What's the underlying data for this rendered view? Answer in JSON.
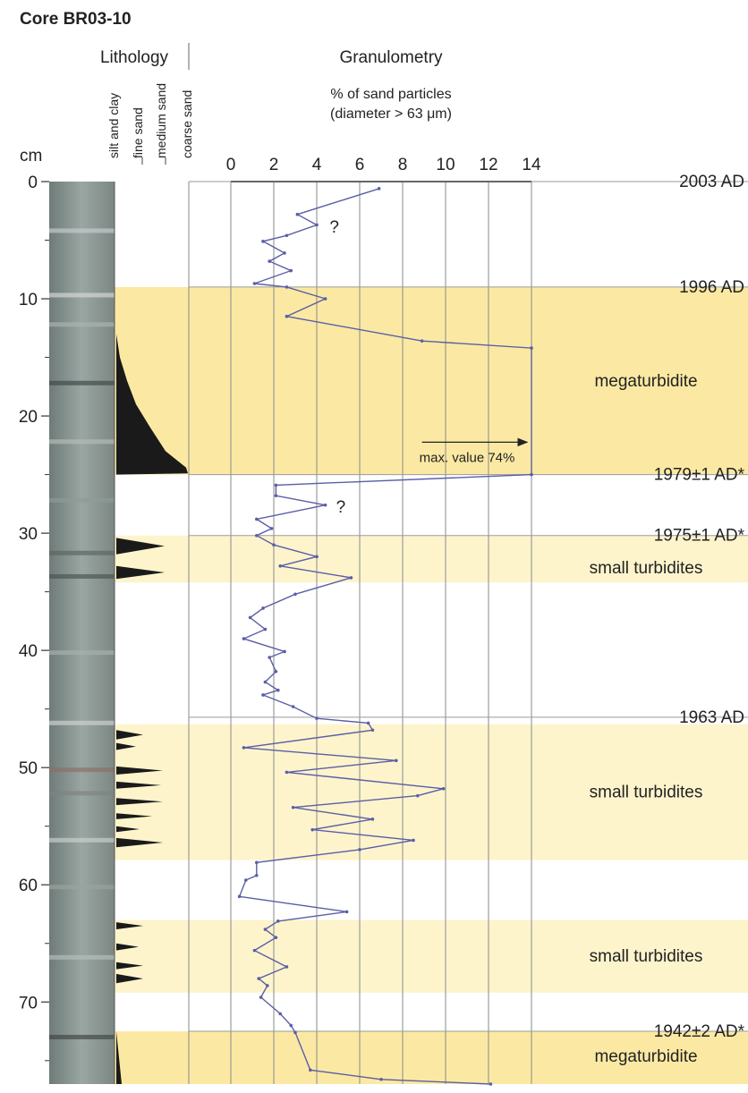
{
  "chart_data": {
    "type": "line",
    "title": "Core BR03-10",
    "lithology_title": "Lithology",
    "granulometry_title": "Granulometry",
    "xlabel_line1": "% of sand particles",
    "xlabel_line2": "(diameter > 63 μm)",
    "ylabel": "cm",
    "x_ticks": [
      "0",
      "2",
      "4",
      "6",
      "8",
      "10",
      "12",
      "14"
    ],
    "y_ticks": [
      "0",
      "10",
      "20",
      "30",
      "40",
      "50",
      "60",
      "70"
    ],
    "xlim": [
      0,
      14
    ],
    "ylim": [
      0,
      77
    ],
    "y_inverted": true,
    "grain_size_classes": [
      "silt and clay",
      "fine sand",
      "medium sand",
      "coarse sand"
    ],
    "series": [
      {
        "color": "#5b5ea6",
        "points": [
          [
            6.9,
            0.6
          ],
          [
            3.1,
            2.8
          ],
          [
            4.0,
            3.7
          ],
          [
            2.6,
            4.6
          ],
          [
            1.5,
            5.1
          ],
          [
            2.5,
            6.1
          ],
          [
            1.8,
            6.8
          ],
          [
            2.8,
            7.6
          ],
          [
            1.1,
            8.7
          ],
          [
            2.6,
            9.0
          ],
          [
            4.4,
            10.0
          ],
          [
            2.6,
            11.5
          ],
          [
            8.9,
            13.6
          ],
          [
            14,
            14.2
          ],
          [
            14,
            25.0
          ],
          [
            2.1,
            25.9
          ],
          [
            2.1,
            26.8
          ],
          [
            4.4,
            27.6
          ],
          [
            1.2,
            28.8
          ],
          [
            1.9,
            29.6
          ],
          [
            1.2,
            30.2
          ],
          [
            2.0,
            31.0
          ],
          [
            4.0,
            32.0
          ],
          [
            2.3,
            32.8
          ],
          [
            5.6,
            33.8
          ],
          [
            3.0,
            35.2
          ],
          [
            1.5,
            36.4
          ],
          [
            0.9,
            37.2
          ],
          [
            1.6,
            38.2
          ],
          [
            0.6,
            39.0
          ],
          [
            2.5,
            40.1
          ],
          [
            1.8,
            40.6
          ],
          [
            2.1,
            41.8
          ],
          [
            1.6,
            42.7
          ],
          [
            2.2,
            43.4
          ],
          [
            1.5,
            43.8
          ],
          [
            2.9,
            44.8
          ],
          [
            4.0,
            45.8
          ],
          [
            6.4,
            46.2
          ],
          [
            6.6,
            46.8
          ],
          [
            0.6,
            48.3
          ],
          [
            7.7,
            49.4
          ],
          [
            2.6,
            50.4
          ],
          [
            9.9,
            51.8
          ],
          [
            8.7,
            52.4
          ],
          [
            2.9,
            53.4
          ],
          [
            6.6,
            54.4
          ],
          [
            3.8,
            55.3
          ],
          [
            8.5,
            56.2
          ],
          [
            6.0,
            57.0
          ],
          [
            1.2,
            58.1
          ],
          [
            1.2,
            59.2
          ],
          [
            0.7,
            59.6
          ],
          [
            0.4,
            61.0
          ],
          [
            5.4,
            62.3
          ],
          [
            2.2,
            63.1
          ],
          [
            1.6,
            63.8
          ],
          [
            2.1,
            64.5
          ],
          [
            1.1,
            65.6
          ],
          [
            2.6,
            67.0
          ],
          [
            1.3,
            68.0
          ],
          [
            1.7,
            68.6
          ],
          [
            1.4,
            69.6
          ],
          [
            2.3,
            71.0
          ],
          [
            2.8,
            72.0
          ],
          [
            3.0,
            72.6
          ],
          [
            3.7,
            75.8
          ],
          [
            7.0,
            76.6
          ],
          [
            12.1,
            77.0
          ]
        ]
      }
    ],
    "event_layers": [
      {
        "from": 9.0,
        "to": 25.0,
        "kind": "megaturbidite",
        "label": "megaturbidite"
      },
      {
        "from": 30.2,
        "to": 34.2,
        "kind": "small",
        "label": "small turbidites"
      },
      {
        "from": 46.3,
        "to": 57.9,
        "kind": "small",
        "label": "small turbidites"
      },
      {
        "from": 63.0,
        "to": 69.2,
        "kind": "small",
        "label": "small turbidites"
      },
      {
        "from": 72.5,
        "to": 77.0,
        "kind": "megaturbidite",
        "label": "megaturbidite"
      }
    ],
    "dates": [
      {
        "depth": 0.0,
        "label": "2003 AD"
      },
      {
        "depth": 9.0,
        "label": "1996 AD"
      },
      {
        "depth": 25.0,
        "label": "1979±1 AD*"
      },
      {
        "depth": 30.2,
        "label": "1975±1 AD*"
      },
      {
        "depth": 45.7,
        "label": "1963 AD"
      },
      {
        "depth": 72.5,
        "label": "1942±2 AD*"
      }
    ],
    "annotations": [
      {
        "text": "?",
        "x": 4.6,
        "y": 3.8
      },
      {
        "text": "?",
        "x": 4.9,
        "y": 27.7
      },
      {
        "text": "max. value 74%",
        "arrow": true,
        "x": 10.0,
        "y": 23.0
      }
    ],
    "colors": {
      "megaturbidite": "#fbe9a3",
      "small_turbidites": "#fdf4cc",
      "series_line": "#5b5ea6",
      "lithology_fill": "#1a1a1a"
    }
  }
}
